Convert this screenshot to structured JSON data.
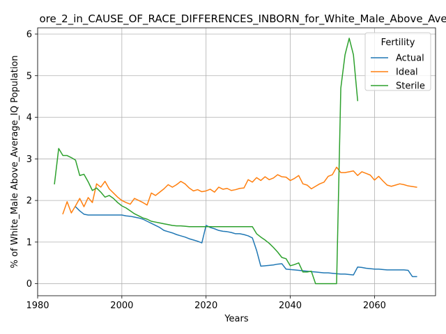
{
  "chart_data": {
    "type": "line",
    "title": "ore_2_in_CAUSE_OF_RACE_DIFFERENCES_INBORN_for_White_Male_Above_Ave",
    "xlabel": "Years",
    "ylabel": "% of White_Male Above_Average_IQ Population",
    "xlim": [
      1980,
      2074.5
    ],
    "ylim": [
      -0.29,
      6.15
    ],
    "xticks": [
      1980,
      2000,
      2020,
      2040,
      2060
    ],
    "yticks": [
      0,
      1,
      2,
      3,
      4,
      5,
      6
    ],
    "grid": true,
    "legend": {
      "title": "Fertility",
      "placement": "top-right"
    },
    "series": [
      {
        "name": "Actual",
        "color": "#1f77b4",
        "points": [
          [
            1989,
            1.85
          ],
          [
            1990,
            1.75
          ],
          [
            1991,
            1.67
          ],
          [
            1992,
            1.65
          ],
          [
            1993,
            1.65
          ],
          [
            1995,
            1.65
          ],
          [
            2000,
            1.65
          ],
          [
            2001,
            1.63
          ],
          [
            2002,
            1.62
          ],
          [
            2003,
            1.6
          ],
          [
            2004,
            1.58
          ],
          [
            2005,
            1.55
          ],
          [
            2006,
            1.5
          ],
          [
            2007,
            1.45
          ],
          [
            2008,
            1.4
          ],
          [
            2009,
            1.35
          ],
          [
            2010,
            1.28
          ],
          [
            2011,
            1.25
          ],
          [
            2012,
            1.22
          ],
          [
            2013,
            1.18
          ],
          [
            2014,
            1.15
          ],
          [
            2015,
            1.12
          ],
          [
            2016,
            1.08
          ],
          [
            2017,
            1.05
          ],
          [
            2018,
            1.02
          ],
          [
            2019,
            0.98
          ],
          [
            2020,
            1.4
          ],
          [
            2021,
            1.35
          ],
          [
            2022,
            1.32
          ],
          [
            2023,
            1.28
          ],
          [
            2024,
            1.26
          ],
          [
            2025,
            1.25
          ],
          [
            2026,
            1.23
          ],
          [
            2027,
            1.2
          ],
          [
            2028,
            1.2
          ],
          [
            2029,
            1.18
          ],
          [
            2030,
            1.15
          ],
          [
            2031,
            1.1
          ],
          [
            2032,
            0.8
          ],
          [
            2033,
            0.42
          ],
          [
            2034,
            0.43
          ],
          [
            2035,
            0.44
          ],
          [
            2036,
            0.45
          ],
          [
            2037,
            0.47
          ],
          [
            2038,
            0.48
          ],
          [
            2039,
            0.35
          ],
          [
            2040,
            0.34
          ],
          [
            2041,
            0.33
          ],
          [
            2042,
            0.32
          ],
          [
            2043,
            0.31
          ],
          [
            2044,
            0.3
          ],
          [
            2045,
            0.29
          ],
          [
            2046,
            0.28
          ],
          [
            2047,
            0.27
          ],
          [
            2048,
            0.26
          ],
          [
            2049,
            0.26
          ],
          [
            2050,
            0.25
          ],
          [
            2051,
            0.24
          ],
          [
            2052,
            0.23
          ],
          [
            2053,
            0.23
          ],
          [
            2054,
            0.22
          ],
          [
            2055,
            0.21
          ],
          [
            2056,
            0.4
          ],
          [
            2057,
            0.39
          ],
          [
            2058,
            0.37
          ],
          [
            2059,
            0.36
          ],
          [
            2060,
            0.35
          ],
          [
            2061,
            0.35
          ],
          [
            2062,
            0.34
          ],
          [
            2063,
            0.33
          ],
          [
            2064,
            0.33
          ],
          [
            2065,
            0.33
          ],
          [
            2066,
            0.33
          ],
          [
            2067,
            0.33
          ],
          [
            2068,
            0.32
          ],
          [
            2069,
            0.17
          ],
          [
            2070,
            0.17
          ]
        ]
      },
      {
        "name": "Ideal",
        "color": "#ff7f0e",
        "points": [
          [
            1986,
            1.68
          ],
          [
            1987,
            1.97
          ],
          [
            1988,
            1.7
          ],
          [
            1989,
            1.87
          ],
          [
            1990,
            2.05
          ],
          [
            1991,
            1.85
          ],
          [
            1992,
            2.07
          ],
          [
            1993,
            1.95
          ],
          [
            1994,
            2.4
          ],
          [
            1995,
            2.32
          ],
          [
            1996,
            2.46
          ],
          [
            1997,
            2.28
          ],
          [
            1998,
            2.18
          ],
          [
            1999,
            2.08
          ],
          [
            2000,
            2.0
          ],
          [
            2001,
            1.95
          ],
          [
            2002,
            1.91
          ],
          [
            2003,
            2.05
          ],
          [
            2004,
            2.0
          ],
          [
            2005,
            1.95
          ],
          [
            2006,
            1.89
          ],
          [
            2007,
            2.18
          ],
          [
            2008,
            2.12
          ],
          [
            2009,
            2.2
          ],
          [
            2010,
            2.28
          ],
          [
            2011,
            2.38
          ],
          [
            2012,
            2.32
          ],
          [
            2013,
            2.38
          ],
          [
            2014,
            2.46
          ],
          [
            2015,
            2.4
          ],
          [
            2016,
            2.3
          ],
          [
            2017,
            2.23
          ],
          [
            2018,
            2.26
          ],
          [
            2019,
            2.21
          ],
          [
            2020,
            2.23
          ],
          [
            2021,
            2.27
          ],
          [
            2022,
            2.2
          ],
          [
            2023,
            2.32
          ],
          [
            2024,
            2.27
          ],
          [
            2025,
            2.29
          ],
          [
            2026,
            2.24
          ],
          [
            2027,
            2.26
          ],
          [
            2028,
            2.29
          ],
          [
            2029,
            2.3
          ],
          [
            2030,
            2.5
          ],
          [
            2031,
            2.44
          ],
          [
            2032,
            2.55
          ],
          [
            2033,
            2.48
          ],
          [
            2034,
            2.57
          ],
          [
            2035,
            2.5
          ],
          [
            2036,
            2.54
          ],
          [
            2037,
            2.62
          ],
          [
            2038,
            2.57
          ],
          [
            2039,
            2.56
          ],
          [
            2040,
            2.48
          ],
          [
            2041,
            2.53
          ],
          [
            2042,
            2.6
          ],
          [
            2043,
            2.4
          ],
          [
            2044,
            2.37
          ],
          [
            2045,
            2.28
          ],
          [
            2046,
            2.34
          ],
          [
            2047,
            2.4
          ],
          [
            2048,
            2.44
          ],
          [
            2049,
            2.58
          ],
          [
            2050,
            2.62
          ],
          [
            2051,
            2.8
          ],
          [
            2052,
            2.67
          ],
          [
            2053,
            2.67
          ],
          [
            2054,
            2.69
          ],
          [
            2055,
            2.71
          ],
          [
            2056,
            2.6
          ],
          [
            2057,
            2.69
          ],
          [
            2058,
            2.65
          ],
          [
            2059,
            2.61
          ],
          [
            2060,
            2.49
          ],
          [
            2061,
            2.58
          ],
          [
            2062,
            2.47
          ],
          [
            2063,
            2.37
          ],
          [
            2064,
            2.34
          ],
          [
            2065,
            2.37
          ],
          [
            2066,
            2.4
          ],
          [
            2067,
            2.38
          ],
          [
            2068,
            2.35
          ],
          [
            2070,
            2.32
          ]
        ]
      },
      {
        "name": "Sterile",
        "color": "#2ca02c",
        "points": [
          [
            1984,
            2.4
          ],
          [
            1985,
            3.25
          ],
          [
            1986,
            3.08
          ],
          [
            1987,
            3.08
          ],
          [
            1988,
            3.03
          ],
          [
            1989,
            2.97
          ],
          [
            1990,
            2.6
          ],
          [
            1991,
            2.63
          ],
          [
            1992,
            2.45
          ],
          [
            1993,
            2.24
          ],
          [
            1994,
            2.3
          ],
          [
            1995,
            2.2
          ],
          [
            1996,
            2.08
          ],
          [
            1997,
            2.12
          ],
          [
            1998,
            2.05
          ],
          [
            1999,
            1.95
          ],
          [
            2000,
            1.87
          ],
          [
            2001,
            1.82
          ],
          [
            2002,
            1.75
          ],
          [
            2003,
            1.68
          ],
          [
            2004,
            1.63
          ],
          [
            2005,
            1.58
          ],
          [
            2006,
            1.55
          ],
          [
            2007,
            1.5
          ],
          [
            2008,
            1.48
          ],
          [
            2009,
            1.46
          ],
          [
            2010,
            1.44
          ],
          [
            2011,
            1.42
          ],
          [
            2012,
            1.4
          ],
          [
            2013,
            1.39
          ],
          [
            2014,
            1.39
          ],
          [
            2015,
            1.38
          ],
          [
            2016,
            1.37
          ],
          [
            2017,
            1.37
          ],
          [
            2018,
            1.37
          ],
          [
            2019,
            1.37
          ],
          [
            2020,
            1.37
          ],
          [
            2021,
            1.37
          ],
          [
            2022,
            1.37
          ],
          [
            2023,
            1.37
          ],
          [
            2024,
            1.37
          ],
          [
            2025,
            1.37
          ],
          [
            2026,
            1.37
          ],
          [
            2027,
            1.37
          ],
          [
            2028,
            1.37
          ],
          [
            2029,
            1.37
          ],
          [
            2030,
            1.37
          ],
          [
            2031,
            1.37
          ],
          [
            2032,
            1.2
          ],
          [
            2033,
            1.12
          ],
          [
            2034,
            1.05
          ],
          [
            2035,
            0.97
          ],
          [
            2036,
            0.87
          ],
          [
            2037,
            0.76
          ],
          [
            2038,
            0.63
          ],
          [
            2039,
            0.6
          ],
          [
            2040,
            0.43
          ],
          [
            2041,
            0.46
          ],
          [
            2042,
            0.5
          ],
          [
            2043,
            0.28
          ],
          [
            2044,
            0.28
          ],
          [
            2045,
            0.3
          ],
          [
            2046,
            0.0
          ],
          [
            2047,
            0.0
          ],
          [
            2048,
            0.0
          ],
          [
            2049,
            0.0
          ],
          [
            2050,
            0.0
          ],
          [
            2051,
            0.0
          ],
          [
            2052,
            4.7
          ],
          [
            2053,
            5.5
          ],
          [
            2054,
            5.9
          ],
          [
            2055,
            5.5
          ],
          [
            2056,
            4.4
          ]
        ]
      }
    ]
  }
}
